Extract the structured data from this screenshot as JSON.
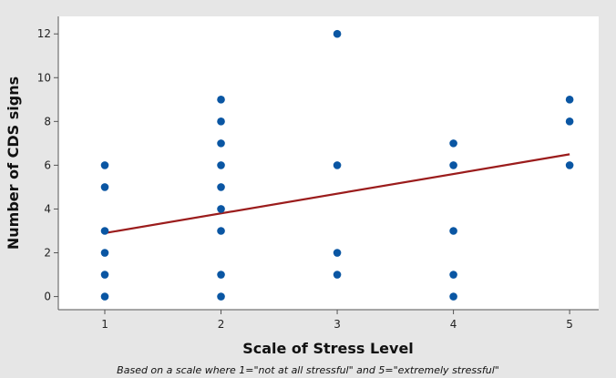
{
  "chart_data": {
    "type": "scatter",
    "title": "",
    "xlabel": "Scale of Stress Level",
    "ylabel": "Number of CDS signs",
    "footnote": "Based on a scale where 1=\"not at all stressful\" and 5=\"extremely stressful\"",
    "xlim": [
      0.6,
      5.25
    ],
    "ylim": [
      -0.6,
      12.8
    ],
    "x_ticks": [
      1,
      2,
      3,
      4,
      5
    ],
    "y_ticks": [
      0,
      2,
      4,
      6,
      8,
      10,
      12
    ],
    "grid": false,
    "legend": "none",
    "colors": {
      "points": "#0a56a3",
      "fit_line": "#9b1c1c",
      "plot_bg": "#ffffff",
      "figure_bg": "#e6e6e6"
    },
    "points": [
      {
        "x": 1,
        "y": 0
      },
      {
        "x": 1,
        "y": 1
      },
      {
        "x": 1,
        "y": 2
      },
      {
        "x": 1,
        "y": 3
      },
      {
        "x": 1,
        "y": 5
      },
      {
        "x": 1,
        "y": 6
      },
      {
        "x": 2,
        "y": 0
      },
      {
        "x": 2,
        "y": 1
      },
      {
        "x": 2,
        "y": 3
      },
      {
        "x": 2,
        "y": 4
      },
      {
        "x": 2,
        "y": 5
      },
      {
        "x": 2,
        "y": 6
      },
      {
        "x": 2,
        "y": 7
      },
      {
        "x": 2,
        "y": 8
      },
      {
        "x": 2,
        "y": 9
      },
      {
        "x": 3,
        "y": 1
      },
      {
        "x": 3,
        "y": 2
      },
      {
        "x": 3,
        "y": 6
      },
      {
        "x": 3,
        "y": 12
      },
      {
        "x": 4,
        "y": 0
      },
      {
        "x": 4,
        "y": 1
      },
      {
        "x": 4,
        "y": 3
      },
      {
        "x": 4,
        "y": 6
      },
      {
        "x": 4,
        "y": 7
      },
      {
        "x": 5,
        "y": 6
      },
      {
        "x": 5,
        "y": 8
      },
      {
        "x": 5,
        "y": 9
      }
    ],
    "fit_line": {
      "x": [
        1,
        5
      ],
      "y": [
        2.9,
        6.5
      ]
    }
  }
}
